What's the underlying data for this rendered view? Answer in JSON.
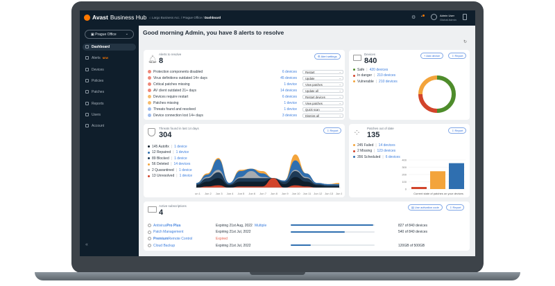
{
  "app": {
    "brand_bold": "Avast",
    "brand_rest": "Business Hub"
  },
  "breadcrumb": [
    "Largo Business Acc.",
    "Prague Office",
    "Dashboard"
  ],
  "user": {
    "name": "Admin User",
    "role": "Global Admin"
  },
  "office_selector": "Prague Office",
  "sidebar": {
    "items": [
      {
        "label": "Dashboard",
        "active": true
      },
      {
        "label": "Alerts",
        "badge": "NEW"
      },
      {
        "label": "Devices"
      },
      {
        "label": "Policies"
      },
      {
        "label": "Patches"
      },
      {
        "label": "Reports"
      },
      {
        "label": "Users"
      },
      {
        "label": "Account"
      }
    ],
    "collapse_icon": "double-chevron-left"
  },
  "greeting": "Good morning Admin, you have 8 alerts to resolve",
  "alerts": {
    "label": "Alerts to resolve",
    "count": "8",
    "settings_button": "Alert settings",
    "rows": [
      {
        "label": "Protection components disabled",
        "devices": "6 devices",
        "action": "Restart",
        "color": "#e8604c"
      },
      {
        "label": "Virus definitions outdated 14+ days",
        "devices": "45 devices",
        "action": "Update",
        "color": "#e8604c"
      },
      {
        "label": "Critical patches missing",
        "devices": "1 device",
        "action": "View patches",
        "color": "#e8604c"
      },
      {
        "label": "AV client outdated 21+ days",
        "devices": "14 devices",
        "action": "Update all",
        "color": "#e8604c"
      },
      {
        "label": "Devices require restart",
        "devices": "6 devices",
        "action": "Restart devices",
        "color": "#f3a43b"
      },
      {
        "label": "Patches missing",
        "devices": "1 device",
        "action": "View patches",
        "color": "#f3a43b"
      },
      {
        "label": "Threats found and resolved",
        "devices": "1 device",
        "action": "Quick scan",
        "color": "#7fa6e6"
      },
      {
        "label": "Device connection lost 14+ days",
        "devices": "3 devices",
        "action": "Dismiss all",
        "color": "#7fa6e6"
      }
    ]
  },
  "devices": {
    "label": "Devices",
    "count": "840",
    "add_button": "+ Add device",
    "report_button": "Report",
    "legend": [
      {
        "label": "Safe",
        "devices": "420 devices",
        "value": 420,
        "color": "#4e8c2b"
      },
      {
        "label": "In danger",
        "devices": "210 devices",
        "value": 210,
        "color": "#d2442b"
      },
      {
        "label": "Vulnerable",
        "devices": "210 devices",
        "value": 210,
        "color": "#f3a43b"
      }
    ]
  },
  "threats": {
    "label": "Threats found in last 14 days",
    "count": "304",
    "report_button": "Report",
    "legend": [
      {
        "label": "145 Autofix",
        "devices": "1 device",
        "color": "#0f1e2b"
      },
      {
        "label": "12 Repaired",
        "devices": "1 device",
        "color": "#2f6fb0"
      },
      {
        "label": "89 Blocked",
        "devices": "1 device",
        "color": "#1e3a55"
      },
      {
        "label": "56 Deleted",
        "devices": "14 devices",
        "color": "#f3a43b"
      },
      {
        "label": "2 Quarantined",
        "devices": "1 device",
        "color": "#a6abb0"
      },
      {
        "label": "13 Unresolved",
        "devices": "1 device",
        "color": "#d2442b"
      }
    ]
  },
  "patches": {
    "label": "Patches out of date",
    "count": "135",
    "report_button": "Report",
    "legend": [
      {
        "label": "245 Failed",
        "devices": "14 devices",
        "color": "#f3a43b"
      },
      {
        "label": "2 Missing",
        "devices": "123 devices",
        "color": "#d2442b"
      },
      {
        "label": "356 Scheduled",
        "devices": "6 devices",
        "color": "#2f6fb0"
      }
    ]
  },
  "subscriptions": {
    "label": "Active subscriptions",
    "count": "4",
    "activation_button": "Use activation code",
    "report_button": "Report",
    "rows": [
      {
        "name_pre": "Antivirus ",
        "name_bold": "Pro Plus",
        "name_post": "",
        "expiry": "Expiring 21st Aug, 2022",
        "extra": "Multiple",
        "usage": 0.985,
        "usage_text": "827 of 840 devices"
      },
      {
        "name_pre": "Patch Management",
        "name_bold": "",
        "name_post": "",
        "expiry": "Expiring 21st Jul, 2022",
        "extra": "",
        "usage": 0.643,
        "usage_text": "540 of 840 devices"
      },
      {
        "name_pre": "",
        "name_bold": "Premium",
        "name_post": " Remote Control",
        "expiry": "Expired",
        "extra": "",
        "usage": null,
        "usage_text": ""
      },
      {
        "name_pre": "Cloud Backup",
        "name_bold": "",
        "name_post": "",
        "expiry": "Expiring 21st Jul, 2022",
        "extra": "",
        "usage": 0.24,
        "usage_text": "120GB of 500GB"
      }
    ]
  },
  "chart_data": [
    {
      "type": "pie",
      "title": "",
      "categories": [
        "Safe",
        "In danger",
        "Vulnerable"
      ],
      "values": [
        420,
        210,
        210
      ],
      "colors": [
        "#4e8c2b",
        "#d2442b",
        "#f3a43b"
      ]
    },
    {
      "type": "area",
      "stacked": true,
      "x": [
        "Jun 1",
        "Jun 2",
        "Jun 3",
        "Jun 4",
        "Jun 5",
        "Jun 6",
        "Jun 7",
        "Jun 8",
        "Jun 9",
        "Jun 10",
        "Jun 11",
        "Jun 12",
        "Jun 13",
        "Jun 14"
      ],
      "series": [
        {
          "name": "Unresolved",
          "color": "#d2442b",
          "values": [
            0,
            1,
            2,
            0,
            1,
            1,
            1,
            8,
            0,
            2,
            1,
            0,
            0,
            0
          ]
        },
        {
          "name": "Autofix",
          "color": "#0f1e2b",
          "values": [
            2,
            4,
            6,
            2,
            4,
            4,
            4,
            0,
            3,
            7,
            4,
            2,
            1,
            1
          ]
        },
        {
          "name": "Blocked",
          "color": "#1e3a55",
          "values": [
            1,
            3,
            5,
            1,
            3,
            3,
            3,
            0,
            2,
            5,
            3,
            1,
            1,
            1
          ]
        },
        {
          "name": "Quarantined",
          "color": "#a6abb0",
          "values": [
            0,
            1,
            2,
            0,
            1,
            6,
            1,
            0,
            0,
            1,
            1,
            0,
            0,
            0
          ]
        },
        {
          "name": "Repaired",
          "color": "#2f6fb0",
          "values": [
            1,
            2,
            9,
            1,
            5,
            2,
            3,
            0,
            1,
            8,
            3,
            1,
            1,
            1
          ]
        },
        {
          "name": "Deleted",
          "color": "#f3a43b",
          "values": [
            0,
            1,
            1,
            0,
            1,
            0,
            2,
            0,
            0,
            5,
            0,
            0,
            0,
            1
          ]
        }
      ]
    },
    {
      "type": "bar",
      "title": "",
      "xlabel": "Current state of patches on your devices",
      "categories": [
        "Missing",
        "Failed",
        "Scheduled"
      ],
      "values": [
        2,
        245,
        356
      ],
      "colors": [
        "#d2442b",
        "#f3a43b",
        "#2f6fb0"
      ],
      "yticks": [
        0,
        100,
        200,
        300,
        400
      ],
      "ylim": [
        0,
        400
      ],
      "grid": true
    }
  ]
}
